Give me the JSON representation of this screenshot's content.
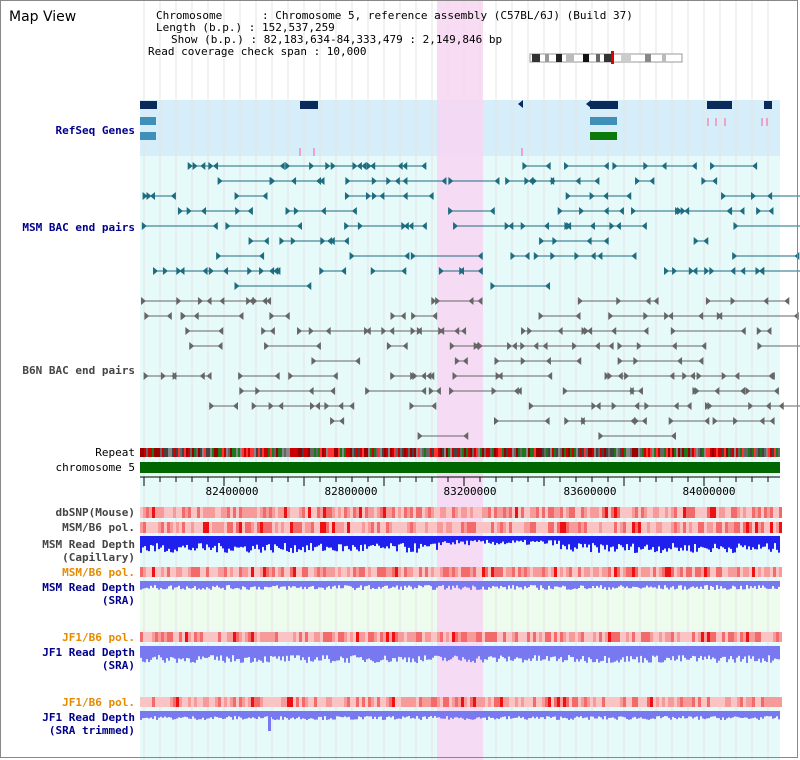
{
  "map_title": "Map View",
  "info": {
    "chromosome": "Chromosome      : Chromosome 5, reference assembly (C57BL/6J) (Build 37)",
    "length": "Length (b.p.) : 152,537,259",
    "show": "Show (b.p.) : 82,183,634-84,333,479 : 2,149,846 bp",
    "coverage": "Read coverage check span : 10,000"
  },
  "tracks": {
    "refseq": "RefSeq Genes",
    "msm_bac": "MSM BAC end pairs",
    "b6n_bac": "B6N BAC end pairs",
    "repeat": "Repeat",
    "chromosome": "chromosome 5",
    "dbsnp": "dbSNP(Mouse)",
    "msm_b6_pol": "MSM/B6 pol.",
    "msm_read_depth_cap_1": "MSM Read Depth",
    "msm_read_depth_cap_2": "(Capillary)",
    "msm_b6_pol_sra": "MSM/B6 pol.",
    "msm_read_depth_sra_1": "MSM Read Depth",
    "msm_read_depth_sra_2": "(SRA)",
    "jf1_b6_pol": "JF1/B6 pol.",
    "jf1_read_depth_1": "JF1 Read Depth",
    "jf1_read_depth_2": "(SRA)",
    "jf1_b6_pol_trim": "JF1/B6 pol.",
    "jf1_read_depth_trim_1": "JF1 Read Depth",
    "jf1_read_depth_trim_2": "(SRA trimmed)"
  },
  "axis": {
    "ticks": [
      "82400000",
      "82800000",
      "83200000",
      "83600000",
      "84000000"
    ]
  },
  "colors": {
    "gene_navy": "#0a2a5c",
    "gene_teal": "#3f8fb8",
    "gene_green": "#0a7a0a",
    "msm_pair": "#1d6c80",
    "b6n_pair": "#666666",
    "highlight": "#f7d6f2",
    "refseq_bg": "#d6eefa",
    "track_bg": "#e6fafa",
    "chromosome_bar": "#006600",
    "depth_blue": "#2020ee",
    "depth_lavender": "#7878f0"
  }
}
